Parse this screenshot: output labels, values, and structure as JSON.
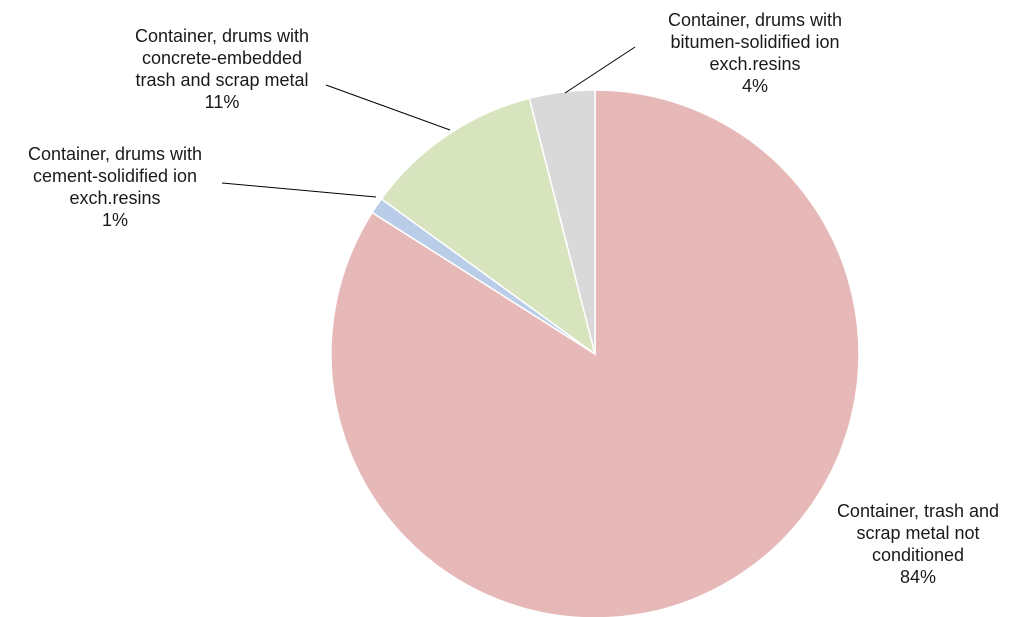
{
  "chart_data": {
    "type": "pie",
    "start_angle": "12 o'clock, clockwise",
    "slices": [
      {
        "label_lines": [
          "Container, trash and",
          "scrap metal not",
          "conditioned"
        ],
        "percent_label": "84%",
        "value": 84,
        "color": "#e6b8b7"
      },
      {
        "label_lines": [
          "Container, drums with",
          "cement-solidified ion",
          "exch.resins"
        ],
        "percent_label": "1%",
        "value": 1,
        "color": "#b9cde8"
      },
      {
        "label_lines": [
          "Container, drums with",
          "concrete-embedded",
          "trash and scrap metal"
        ],
        "percent_label": "11%",
        "value": 11,
        "color": "#d7e4bd"
      },
      {
        "label_lines": [
          "Container, drums with",
          "bitumen-solidified ion",
          "exch.resins"
        ],
        "percent_label": "4%",
        "value": 4,
        "color": "#d9d9d9"
      }
    ],
    "leader_line_color": "#000000"
  }
}
